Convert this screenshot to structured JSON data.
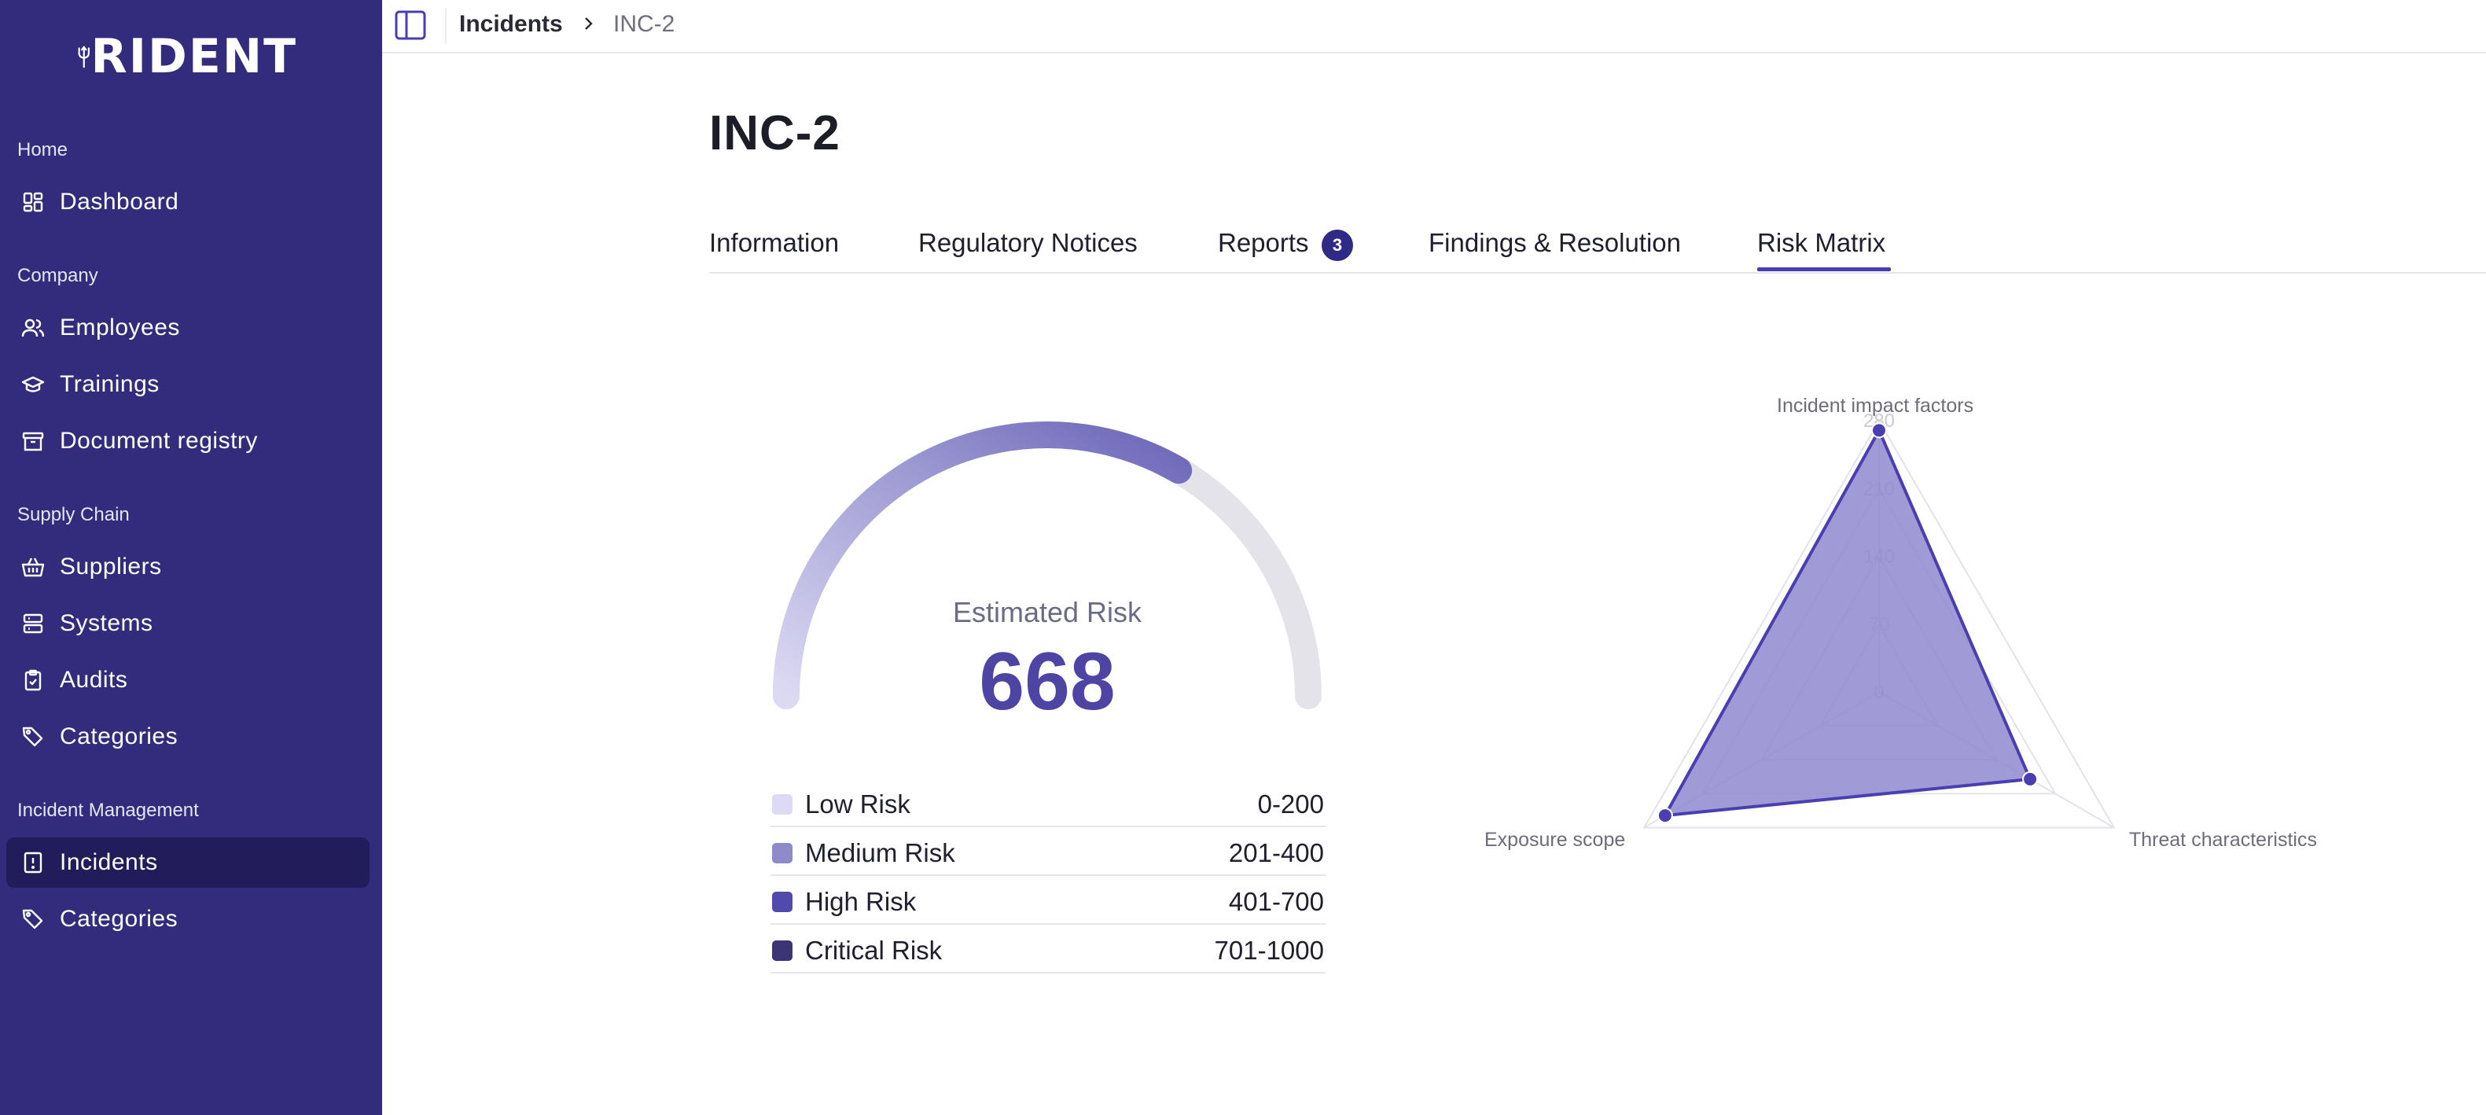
{
  "brand": {
    "name": "RIDENT"
  },
  "sidebar": {
    "sections": [
      {
        "label": "Home",
        "items": [
          {
            "label": "Dashboard",
            "icon": "dashboard-icon"
          }
        ]
      },
      {
        "label": "Company",
        "items": [
          {
            "label": "Employees",
            "icon": "users-icon"
          },
          {
            "label": "Trainings",
            "icon": "graduation-cap-icon"
          },
          {
            "label": "Document registry",
            "icon": "archive-icon"
          }
        ]
      },
      {
        "label": "Supply Chain",
        "items": [
          {
            "label": "Suppliers",
            "icon": "basket-icon"
          },
          {
            "label": "Systems",
            "icon": "server-icon"
          },
          {
            "label": "Audits",
            "icon": "clipboard-check-icon"
          },
          {
            "label": "Categories",
            "icon": "tag-icon"
          }
        ]
      },
      {
        "label": "Incident Management",
        "items": [
          {
            "label": "Incidents",
            "icon": "alert-file-icon",
            "active": true
          },
          {
            "label": "Categories",
            "icon": "tag-icon"
          }
        ]
      }
    ]
  },
  "breadcrumb": {
    "parent": "Incidents",
    "current": "INC-2"
  },
  "page": {
    "title": "INC-2"
  },
  "tabs": [
    {
      "label": "Information"
    },
    {
      "label": "Regulatory Notices"
    },
    {
      "label": "Reports",
      "badge": "3"
    },
    {
      "label": "Findings & Resolution"
    },
    {
      "label": "Risk Matrix",
      "active": true
    }
  ],
  "gauge": {
    "label": "Estimated Risk",
    "value": "668",
    "max": 1000,
    "fraction": 0.668
  },
  "legend": [
    {
      "name": "Low Risk",
      "range": "0-200",
      "color": "#dcdaf5"
    },
    {
      "name": "Medium Risk",
      "range": "201-400",
      "color": "#8f8ac9"
    },
    {
      "name": "High Risk",
      "range": "401-700",
      "color": "#5249ac"
    },
    {
      "name": "Critical Risk",
      "range": "701-1000",
      "color": "#3b3576"
    }
  ],
  "colors": {
    "sidebar": "#332c7c",
    "sidebar_active": "#221d5a",
    "accent": "#4a3fb0",
    "radar_fill": "#8f8ad0",
    "radar_stroke": "#4a3fb0"
  },
  "chart_data": {
    "type": "radar",
    "axes": [
      "Incident impact factors",
      "Threat characteristics",
      "Exposure scope"
    ],
    "ticks": [
      "0",
      "70",
      "140",
      "210",
      "280"
    ],
    "range": [
      0,
      280
    ],
    "series": [
      {
        "values": [
          270,
          180,
          255
        ]
      }
    ]
  }
}
